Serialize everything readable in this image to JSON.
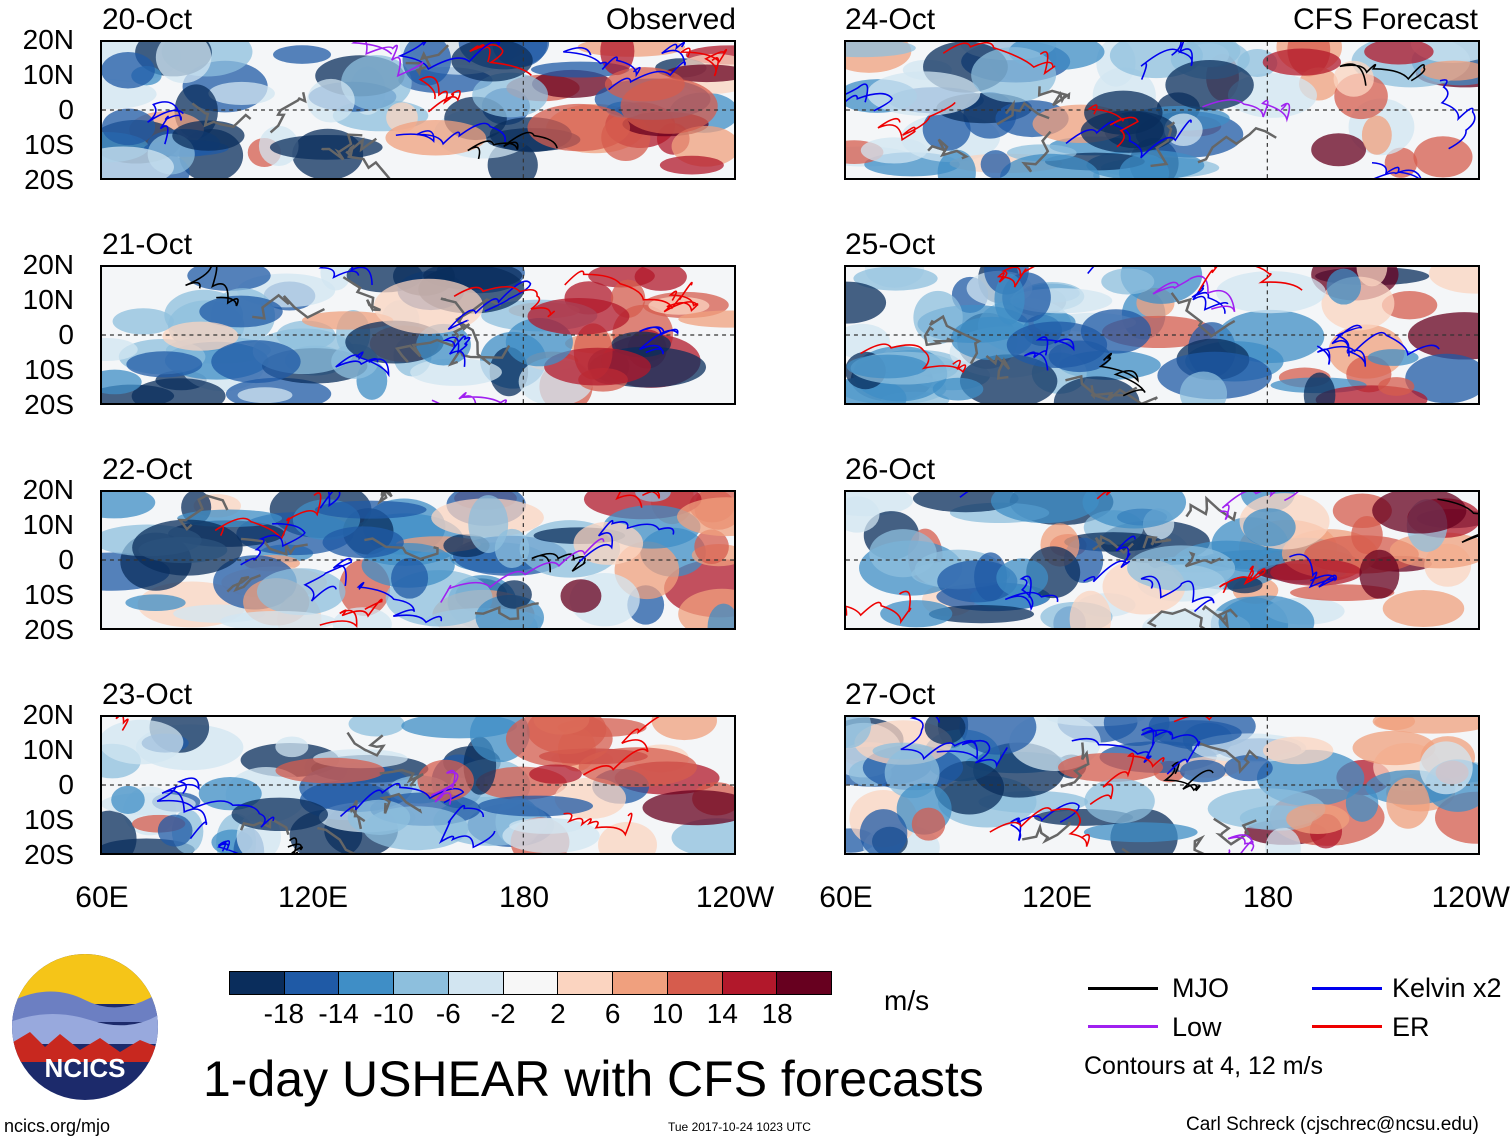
{
  "panels_left": [
    {
      "date": "20-Oct",
      "title": "Observed"
    },
    {
      "date": "21-Oct",
      "title": ""
    },
    {
      "date": "22-Oct",
      "title": ""
    },
    {
      "date": "23-Oct",
      "title": ""
    }
  ],
  "panels_right": [
    {
      "date": "24-Oct",
      "title": "CFS Forecast"
    },
    {
      "date": "25-Oct",
      "title": ""
    },
    {
      "date": "26-Oct",
      "title": ""
    },
    {
      "date": "27-Oct",
      "title": ""
    }
  ],
  "lat_labels": [
    "20N",
    "10N",
    "0",
    "10S",
    "20S"
  ],
  "lon_labels": [
    "60E",
    "120E",
    "180",
    "120W"
  ],
  "colorbar": {
    "colors": [
      "#0a2d5c",
      "#1f5aa6",
      "#3f8ec6",
      "#8dbfdd",
      "#d2e5f1",
      "#f7f7f7",
      "#fbd4c0",
      "#f0a07e",
      "#d65c4d",
      "#b2182b",
      "#67001f"
    ],
    "labels": [
      "-18",
      "-14",
      "-10",
      "-6",
      "-2",
      "2",
      "6",
      "10",
      "14",
      "18"
    ],
    "units": "m/s"
  },
  "legend": {
    "items": [
      {
        "name": "MJO",
        "color": "#000000"
      },
      {
        "name": "Kelvin x2",
        "color": "#0000ee"
      },
      {
        "name": "Low",
        "color": "#a020f0"
      },
      {
        "name": "ER",
        "color": "#ee0000"
      }
    ],
    "contours": "Contours at 4, 12 m/s"
  },
  "title": "1-day USHEAR with CFS forecasts",
  "logo_text": "NCICS",
  "site": "ncics.org/mjo",
  "timestamp": "Tue 2017-10-24 1023 UTC",
  "credit": "Carl Schreck (cjschrec@ncsu.edu)"
}
